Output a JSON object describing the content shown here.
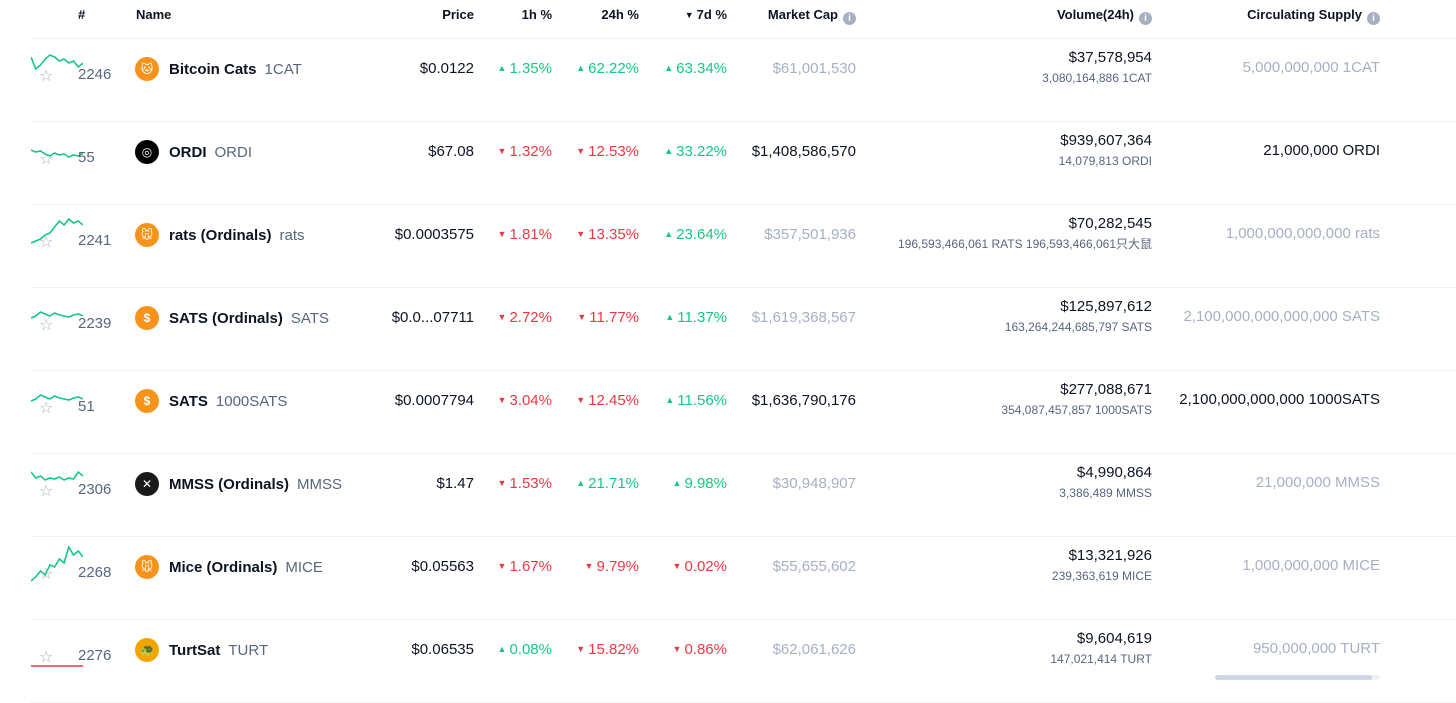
{
  "header": {
    "rank": "#",
    "name": "Name",
    "price": "Price",
    "h1": "1h %",
    "h24": "24h %",
    "d7": "7d %",
    "market_cap": "Market Cap",
    "volume": "Volume(24h)",
    "supply": "Circulating Supply",
    "info_icon": "i",
    "sort_icon": "▼"
  },
  "colors": {
    "up": "#16c784",
    "down": "#ea3943",
    "muted": "#a6b0c3"
  },
  "rows": [
    {
      "star": "☆",
      "rank": "2246",
      "name": "Bitcoin Cats",
      "symbol": "1CAT",
      "logo_color": "#f7931a",
      "logo_glyph": "🐱",
      "price": "$0.0122",
      "h1": "1.35%",
      "h1_dir": "up",
      "h24": "62.22%",
      "h24_dir": "up",
      "d7": "63.34%",
      "d7_dir": "up",
      "mcap": "$61,001,530",
      "mcap_muted": true,
      "volume": "$37,578,954",
      "volume_sub": "3,080,164,886 1CAT",
      "supply": "5,000,000,000 1CAT",
      "supply_muted": true,
      "spark_color": "#16c784",
      "spark": [
        30,
        18,
        22,
        28,
        32,
        30,
        26,
        28,
        24,
        26,
        20,
        24
      ]
    },
    {
      "star": "☆",
      "rank": "55",
      "name": "ORDI",
      "symbol": "ORDI",
      "logo_color": "#000000",
      "logo_glyph": "◎",
      "price": "$67.08",
      "h1": "1.32%",
      "h1_dir": "down",
      "h24": "12.53%",
      "h24_dir": "down",
      "d7": "33.22%",
      "d7_dir": "up",
      "mcap": "$1,408,586,570",
      "mcap_muted": false,
      "volume": "$939,607,364",
      "volume_sub": "14,079,813 ORDI",
      "supply": "21,000,000 ORDI",
      "supply_muted": false,
      "spark_color": "#16c784",
      "spark": [
        20,
        18,
        19,
        16,
        14,
        17,
        15,
        16,
        13,
        15,
        14,
        17
      ]
    },
    {
      "star": "☆",
      "rank": "2241",
      "name": "rats (Ordinals)",
      "symbol": "rats",
      "logo_color": "#f7931a",
      "logo_glyph": "🐭",
      "price": "$0.0003575",
      "h1": "1.81%",
      "h1_dir": "down",
      "h24": "13.35%",
      "h24_dir": "down",
      "d7": "23.64%",
      "d7_dir": "up",
      "mcap": "$357,501,936",
      "mcap_muted": true,
      "volume": "$70,282,545",
      "volume_sub": "196,593,466,061 RATS 196,593,466,061只大鼠",
      "supply": "1,000,000,000,000 rats",
      "supply_muted": true,
      "spark_color": "#16c784",
      "spark": [
        10,
        12,
        14,
        18,
        20,
        26,
        32,
        28,
        34,
        30,
        32,
        28
      ]
    },
    {
      "star": "☆",
      "rank": "2239",
      "name": "SATS (Ordinals)",
      "symbol": "SATS",
      "logo_color": "#f7931a",
      "logo_glyph": "$",
      "price": "$0.0...07711",
      "h1": "2.72%",
      "h1_dir": "down",
      "h24": "11.77%",
      "h24_dir": "down",
      "d7": "11.37%",
      "d7_dir": "up",
      "mcap": "$1,619,368,567",
      "mcap_muted": true,
      "volume": "$125,897,612",
      "volume_sub": "163,264,244,685,797 SATS",
      "supply": "2,100,000,000,000,000 SATS",
      "supply_muted": true,
      "spark_color": "#16c784",
      "spark": [
        18,
        20,
        24,
        22,
        20,
        23,
        21,
        20,
        19,
        21,
        22,
        20
      ]
    },
    {
      "star": "☆",
      "rank": "51",
      "name": "SATS",
      "symbol": "1000SATS",
      "logo_color": "#f7931a",
      "logo_glyph": "$",
      "price": "$0.0007794",
      "h1": "3.04%",
      "h1_dir": "down",
      "h24": "12.45%",
      "h24_dir": "down",
      "d7": "11.56%",
      "d7_dir": "up",
      "mcap": "$1,636,790,176",
      "mcap_muted": false,
      "volume": "$277,088,671",
      "volume_sub": "354,087,457,857 1000SATS",
      "supply": "2,100,000,000,000 1000SATS",
      "supply_muted": false,
      "spark_color": "#16c784",
      "spark": [
        18,
        20,
        24,
        22,
        20,
        23,
        21,
        20,
        19,
        21,
        22,
        20
      ]
    },
    {
      "star": "☆",
      "rank": "2306",
      "name": "MMSS (Ordinals)",
      "symbol": "MMSS",
      "logo_color": "#1a1a1a",
      "logo_glyph": "✕",
      "price": "$1.47",
      "h1": "1.53%",
      "h1_dir": "down",
      "h24": "21.71%",
      "h24_dir": "up",
      "d7": "9.98%",
      "d7_dir": "up",
      "mcap": "$30,948,907",
      "mcap_muted": true,
      "volume": "$4,990,864",
      "volume_sub": "3,386,489 MMSS",
      "supply": "21,000,000 MMSS",
      "supply_muted": true,
      "spark_color": "#16c784",
      "spark": [
        30,
        24,
        26,
        22,
        24,
        23,
        25,
        22,
        24,
        23,
        30,
        26
      ]
    },
    {
      "star": "☆",
      "rank": "2268",
      "name": "Mice (Ordinals)",
      "symbol": "MICE",
      "logo_color": "#f7931a",
      "logo_glyph": "🐭",
      "price": "$0.05563",
      "h1": "1.67%",
      "h1_dir": "down",
      "h24": "9.79%",
      "h24_dir": "down",
      "d7": "0.02%",
      "d7_dir": "down",
      "mcap": "$55,655,602",
      "mcap_muted": true,
      "volume": "$13,321,926",
      "volume_sub": "239,363,619 MICE",
      "supply": "1,000,000,000 MICE",
      "supply_muted": true,
      "spark_color": "#16c784",
      "spark": [
        4,
        8,
        14,
        10,
        20,
        18,
        26,
        22,
        38,
        30,
        34,
        28
      ]
    },
    {
      "star": "☆",
      "rank": "2276",
      "name": "TurtSat",
      "symbol": "TURT",
      "logo_color": "#f0a500",
      "logo_glyph": "🐢",
      "price": "$0.06535",
      "h1": "0.08%",
      "h1_dir": "up",
      "h24": "15.82%",
      "h24_dir": "down",
      "d7": "0.86%",
      "d7_dir": "down",
      "mcap": "$62,061,626",
      "mcap_muted": true,
      "volume": "$9,604,619",
      "volume_sub": "147,021,414 TURT",
      "supply": "950,000,000 TURT",
      "supply_muted": true,
      "supply_progress": 0.95,
      "spark_color": "#ea3943",
      "spark": [
        2,
        2,
        2,
        2,
        2,
        2,
        2,
        2,
        2,
        2,
        2,
        2
      ]
    }
  ]
}
